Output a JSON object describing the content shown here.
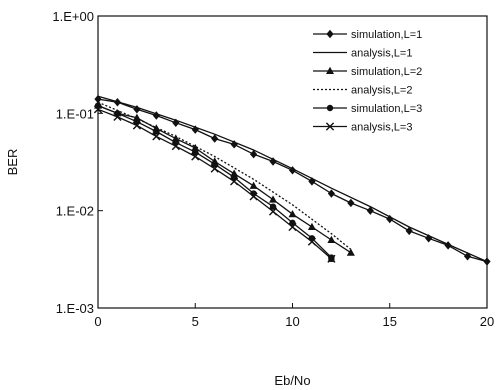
{
  "chart_data": {
    "type": "line",
    "title": "",
    "xlabel": "Eb/No",
    "ylabel": "BER",
    "xlim": [
      0,
      20
    ],
    "ylim": [
      0.001,
      1
    ],
    "yscale": "log",
    "grid": false,
    "legend_position": "top-right",
    "x_ticks": [
      "0",
      "5",
      "10",
      "15",
      "20"
    ],
    "y_ticks": [
      "1.E+00",
      "1.E-01",
      "1.E-02",
      "1.E-03"
    ],
    "series": [
      {
        "name": "simulation,L=1",
        "marker": "diamond",
        "dash": "solid",
        "x": [
          0,
          1,
          2,
          3,
          4,
          5,
          6,
          7,
          8,
          9,
          10,
          11,
          12,
          13,
          14,
          15,
          16,
          17,
          18,
          19,
          20
        ],
        "y": [
          0.14,
          0.13,
          0.11,
          0.095,
          0.08,
          0.068,
          0.055,
          0.048,
          0.038,
          0.032,
          0.026,
          0.02,
          0.015,
          0.012,
          0.01,
          0.0082,
          0.0062,
          0.0052,
          0.0044,
          0.0034,
          0.003
        ]
      },
      {
        "name": "analysis,L=1",
        "marker": "none",
        "dash": "solid",
        "x": [
          0,
          2,
          4,
          6,
          8,
          10,
          12,
          14,
          16,
          18,
          20
        ],
        "y": [
          0.15,
          0.115,
          0.085,
          0.061,
          0.042,
          0.027,
          0.017,
          0.011,
          0.0068,
          0.0045,
          0.003
        ]
      },
      {
        "name": "simulation,L=2",
        "marker": "triangle",
        "dash": "solid",
        "x": [
          0,
          1,
          2,
          3,
          4,
          5,
          6,
          7,
          8,
          9,
          10,
          11,
          12,
          13
        ],
        "y": [
          0.12,
          0.1,
          0.09,
          0.07,
          0.055,
          0.044,
          0.032,
          0.024,
          0.018,
          0.013,
          0.0092,
          0.0068,
          0.005,
          0.0037
        ]
      },
      {
        "name": "analysis,L=2",
        "marker": "none",
        "dash": "dotted",
        "x": [
          0,
          2,
          4,
          6,
          8,
          10,
          12,
          13
        ],
        "y": [
          0.13,
          0.088,
          0.058,
          0.036,
          0.021,
          0.0115,
          0.0058,
          0.004
        ]
      },
      {
        "name": "simulation,L=3",
        "marker": "circle",
        "dash": "solid",
        "x": [
          0,
          1,
          2,
          3,
          4,
          5,
          6,
          7,
          8,
          9,
          10,
          11,
          12
        ],
        "y": [
          0.12,
          0.1,
          0.082,
          0.065,
          0.05,
          0.04,
          0.03,
          0.022,
          0.015,
          0.011,
          0.0075,
          0.0052,
          0.0033
        ]
      },
      {
        "name": "analysis,L=3",
        "marker": "x",
        "dash": "solid",
        "x": [
          0,
          1,
          2,
          3,
          4,
          5,
          6,
          7,
          8,
          9,
          10,
          11,
          12
        ],
        "y": [
          0.11,
          0.092,
          0.075,
          0.058,
          0.046,
          0.036,
          0.027,
          0.02,
          0.014,
          0.0098,
          0.0068,
          0.0048,
          0.0032
        ]
      }
    ],
    "annotations": [
      {
        "x": 12,
        "y": 0.0032,
        "marker": "square"
      }
    ]
  }
}
